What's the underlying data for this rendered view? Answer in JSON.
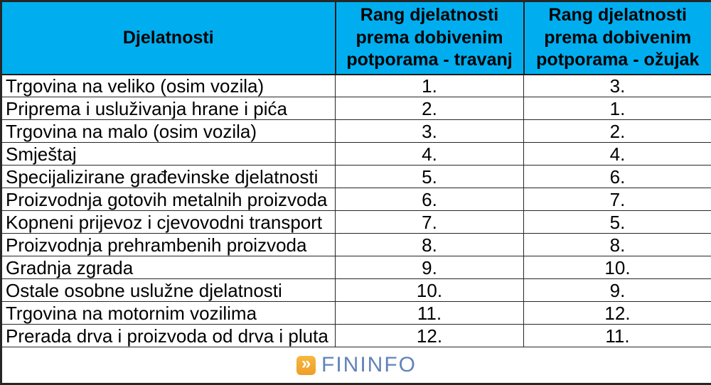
{
  "colors": {
    "header_bg": "#00AEEF",
    "grid_border": "#262626",
    "logo_orange": "#F2A733",
    "logo_text_blue": "#6283B8",
    "body_text": "#000000"
  },
  "table": {
    "headers": [
      {
        "label": "Djelatnosti"
      },
      {
        "label": "Rang djelatnosti prema dobivenim potporama - travanj"
      },
      {
        "label": "Rang djelatnosti prema dobivenim potporama - ožujak"
      }
    ],
    "rows": [
      {
        "djelatnost": "Trgovina na veliko (osim vozila)",
        "travanj": "1.",
        "ozujak": "3."
      },
      {
        "djelatnost": "Priprema i usluživanja hrane i pića",
        "travanj": "2.",
        "ozujak": "1."
      },
      {
        "djelatnost": "Trgovina na malo (osim vozila)",
        "travanj": "3.",
        "ozujak": "2."
      },
      {
        "djelatnost": "Smještaj",
        "travanj": "4.",
        "ozujak": "4."
      },
      {
        "djelatnost": "Specijalizirane građevinske djelatnosti",
        "travanj": "5.",
        "ozujak": "6."
      },
      {
        "djelatnost": "Proizvodnja gotovih metalnih proizvoda",
        "travanj": "6.",
        "ozujak": "7."
      },
      {
        "djelatnost": "Kopneni prijevoz i cjevovodni transport",
        "travanj": "7.",
        "ozujak": "5."
      },
      {
        "djelatnost": "Proizvodnja prehrambenih proizvoda",
        "travanj": "8.",
        "ozujak": "8."
      },
      {
        "djelatnost": "Gradnja zgrada",
        "travanj": "9.",
        "ozujak": "10."
      },
      {
        "djelatnost": "Ostale osobne uslužne djelatnosti",
        "travanj": "10.",
        "ozujak": "9."
      },
      {
        "djelatnost": "Trgovina na motornim vozilima",
        "travanj": "11.",
        "ozujak": "12."
      },
      {
        "djelatnost": "Prerada drva i proizvoda od drva i pluta",
        "travanj": "12.",
        "ozujak": "11."
      }
    ]
  },
  "footer": {
    "logo_chevron": "»",
    "logo_text": "FININFO"
  },
  "chart_data": {
    "type": "table",
    "title": "",
    "columns": [
      "Djelatnosti",
      "Rang djelatnosti prema dobivenim potporama - travanj",
      "Rang djelatnosti prema dobivenim potporama - ožujak"
    ],
    "rows": [
      [
        "Trgovina na veliko (osim vozila)",
        "1.",
        "3."
      ],
      [
        "Priprema i usluživanja hrane i pića",
        "2.",
        "1."
      ],
      [
        "Trgovina na malo (osim vozila)",
        "3.",
        "2."
      ],
      [
        "Smještaj",
        "4.",
        "4."
      ],
      [
        "Specijalizirane građevinske djelatnosti",
        "5.",
        "6."
      ],
      [
        "Proizvodnja gotovih metalnih proizvoda",
        "6.",
        "7."
      ],
      [
        "Kopneni prijevoz i cjevovodni transport",
        "7.",
        "5."
      ],
      [
        "Proizvodnja prehrambenih proizvoda",
        "8.",
        "8."
      ],
      [
        "Gradnja zgrada",
        "9.",
        "10."
      ],
      [
        "Ostale osobne uslužne djelatnosti",
        "10.",
        "9."
      ],
      [
        "Trgovina na motornim vozilima",
        "11.",
        "12."
      ],
      [
        "Prerada drva i proizvoda od drva i pluta",
        "12.",
        "11."
      ]
    ]
  }
}
